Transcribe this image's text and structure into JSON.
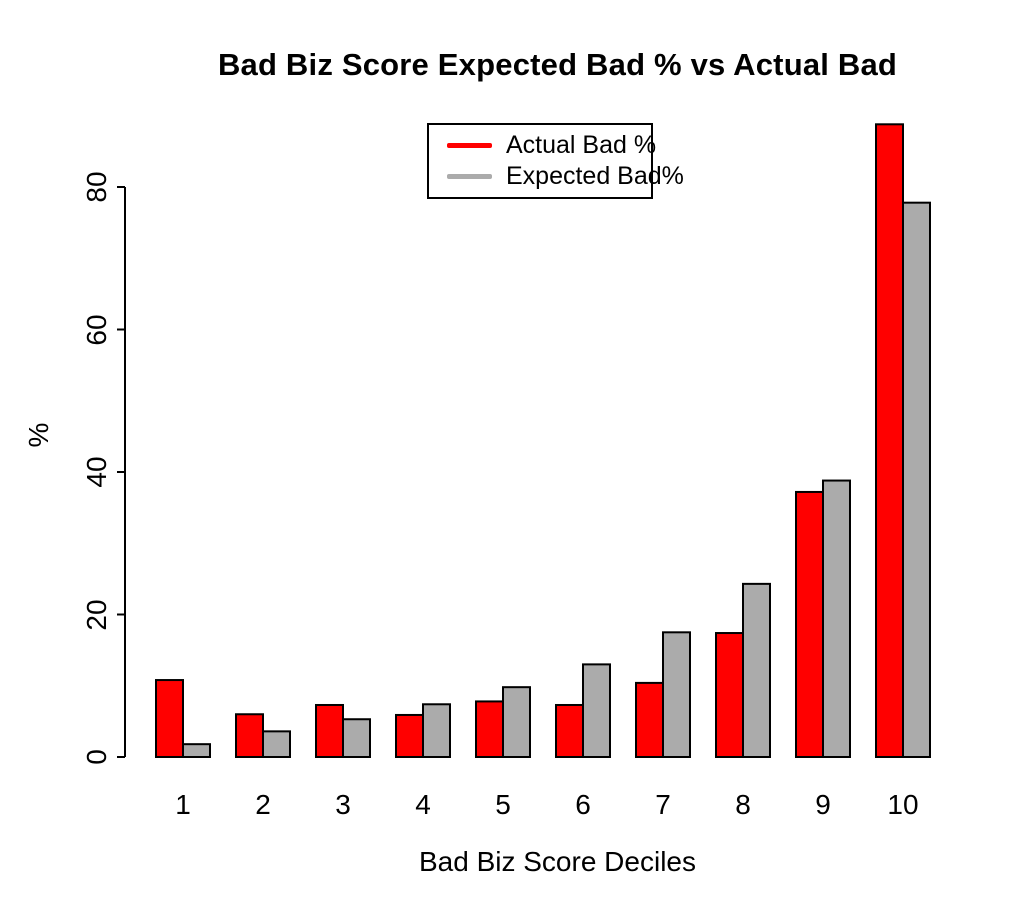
{
  "figure": {
    "title": "Bad Biz Score Expected Bad % vs Actual Bad",
    "x_axis_title": "Bad Biz Score Deciles",
    "y_axis_title": "%"
  },
  "chart_data": {
    "type": "bar",
    "title": "Bad Biz Score Expected Bad % vs Actual Bad",
    "xlabel": "Bad Biz Score Deciles",
    "ylabel": "%",
    "categories": [
      "1",
      "2",
      "3",
      "4",
      "5",
      "6",
      "7",
      "8",
      "9",
      "10"
    ],
    "series": [
      {
        "name": "Actual Bad %",
        "color": "#ff0000",
        "values": [
          10.8,
          6.0,
          7.3,
          5.9,
          7.8,
          7.3,
          10.4,
          17.4,
          37.2,
          88.8
        ]
      },
      {
        "name": "Expected Bad%",
        "color": "#ababab",
        "values": [
          1.8,
          3.6,
          5.3,
          7.4,
          9.8,
          13.0,
          17.5,
          24.3,
          38.8,
          77.8
        ]
      }
    ],
    "ylim": [
      0,
      90
    ],
    "yticks": [
      0,
      20,
      40,
      60,
      80
    ],
    "bar_border_color": "#000000",
    "axis_color": "#000000",
    "background": "#ffffff",
    "grid": false,
    "legend_position": "top-center"
  }
}
